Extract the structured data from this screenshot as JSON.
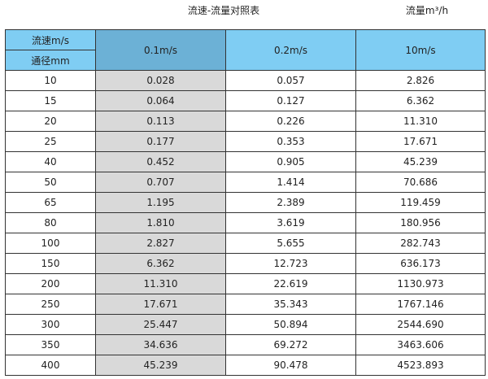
{
  "title": "流速-流量对照表",
  "unit_label": "流量m³/h",
  "header": {
    "velocity_label": "流速m/s",
    "diameter_label": "通径mm",
    "columns": [
      "0.1m/s",
      "0.2m/s",
      "10m/s"
    ]
  },
  "colors": {
    "header": "#7fcdf3",
    "header_highlight": "#6cb1d6",
    "column_highlight": "#d9d9d9"
  },
  "rows": [
    {
      "dn": "10",
      "v": [
        "0.028",
        "0.057",
        "2.826"
      ]
    },
    {
      "dn": "15",
      "v": [
        "0.064",
        "0.127",
        "6.362"
      ]
    },
    {
      "dn": "20",
      "v": [
        "0.113",
        "0.226",
        "11.310"
      ]
    },
    {
      "dn": "25",
      "v": [
        "0.177",
        "0.353",
        "17.671"
      ]
    },
    {
      "dn": "40",
      "v": [
        "0.452",
        "0.905",
        "45.239"
      ]
    },
    {
      "dn": "50",
      "v": [
        "0.707",
        "1.414",
        "70.686"
      ]
    },
    {
      "dn": "65",
      "v": [
        "1.195",
        "2.389",
        "119.459"
      ]
    },
    {
      "dn": "80",
      "v": [
        "1.810",
        "3.619",
        "180.956"
      ]
    },
    {
      "dn": "100",
      "v": [
        "2.827",
        "5.655",
        "282.743"
      ]
    },
    {
      "dn": "150",
      "v": [
        "6.362",
        "12.723",
        "636.173"
      ]
    },
    {
      "dn": "200",
      "v": [
        "11.310",
        "22.619",
        "1130.973"
      ]
    },
    {
      "dn": "250",
      "v": [
        "17.671",
        "35.343",
        "1767.146"
      ]
    },
    {
      "dn": "300",
      "v": [
        "25.447",
        "50.894",
        "2544.690"
      ]
    },
    {
      "dn": "350",
      "v": [
        "34.636",
        "69.272",
        "3463.606"
      ]
    },
    {
      "dn": "400",
      "v": [
        "45.239",
        "90.478",
        "4523.893"
      ]
    }
  ]
}
